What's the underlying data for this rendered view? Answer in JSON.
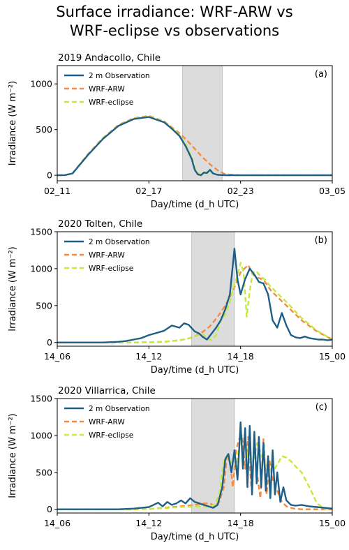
{
  "figure": {
    "title_line1": "Surface irradiance: WRF-ARW vs",
    "title_line2": "WRF-eclipse vs observations"
  },
  "colors": {
    "observation": "#1f5f87",
    "wrf_arw": "#f58a45",
    "wrf_eclipse": "#c2ea3c",
    "eclipse_shade": "#dcdcdc"
  },
  "chart_data": [
    {
      "type": "line",
      "title": "2019 Andacollo, Chile",
      "panel_label": "(a)",
      "xlabel": "Day/time (d_h UTC)",
      "ylabel": "Irradiance (W m⁻²)",
      "xlim": [
        0,
        18
      ],
      "ylim": [
        -60,
        1200
      ],
      "yticks": [
        0,
        500,
        1000
      ],
      "xticks": [
        0,
        6,
        12,
        18
      ],
      "xtick_labels": [
        "02_11",
        "02_17",
        "02_23",
        "03_05"
      ],
      "eclipse_window": [
        8.2,
        10.8
      ],
      "legend": "upper left",
      "series": [
        {
          "name": "2 m Observation",
          "key": "obs",
          "x": [
            0,
            0.5,
            1,
            2,
            3,
            4,
            5,
            6,
            7,
            7.5,
            8,
            8.4,
            8.8,
            9.0,
            9.2,
            9.4,
            9.6,
            9.8,
            10.0,
            10.2,
            10.5,
            11,
            12,
            14,
            16,
            18
          ],
          "y": [
            0,
            2,
            20,
            220,
            400,
            540,
            615,
            638,
            580,
            510,
            430,
            320,
            180,
            60,
            10,
            0,
            30,
            25,
            60,
            20,
            5,
            0,
            0,
            0,
            0,
            0
          ]
        },
        {
          "name": "WRF-ARW",
          "key": "arw",
          "x": [
            0,
            0.5,
            1,
            2,
            3,
            4,
            5,
            6,
            7,
            8,
            8.5,
            9,
            9.5,
            10,
            10.5,
            11,
            12,
            14,
            16,
            18
          ],
          "y": [
            0,
            2,
            20,
            230,
            410,
            550,
            625,
            650,
            590,
            460,
            380,
            290,
            200,
            120,
            55,
            10,
            0,
            0,
            0,
            0
          ]
        },
        {
          "name": "WRF-eclipse",
          "key": "ecl",
          "x": [
            0,
            0.5,
            1,
            2,
            3,
            4,
            5,
            6,
            7,
            7.5,
            8,
            8.4,
            8.8,
            9.0,
            9.2,
            9.4,
            9.6,
            9.8,
            10.0,
            10.3,
            10.6,
            11,
            12,
            14,
            16,
            18
          ],
          "y": [
            0,
            2,
            20,
            225,
            405,
            545,
            620,
            645,
            585,
            515,
            440,
            340,
            200,
            80,
            25,
            5,
            20,
            40,
            35,
            15,
            5,
            0,
            0,
            0,
            0,
            0
          ]
        }
      ]
    },
    {
      "type": "line",
      "title": "2020 Tolten, Chile",
      "panel_label": "(b)",
      "xlabel": "Day/time (d_h UTC)",
      "ylabel": "Irradiance (W m⁻²)",
      "xlim": [
        0,
        18
      ],
      "ylim": [
        -50,
        1500
      ],
      "yticks": [
        0,
        500,
        1000,
        1500
      ],
      "xticks": [
        0,
        6,
        12,
        18
      ],
      "xtick_labels": [
        "14_06",
        "14_12",
        "14_18",
        "15_00"
      ],
      "eclipse_window": [
        8.8,
        11.6
      ],
      "legend": "upper left",
      "series": [
        {
          "name": "2 m Observation",
          "key": "obs",
          "x": [
            0,
            1,
            2,
            3,
            3.5,
            4,
            4.5,
            5,
            5.5,
            6,
            6.5,
            7,
            7.5,
            8,
            8.3,
            8.6,
            9,
            9.3,
            9.5,
            9.8,
            10.1,
            10.4,
            10.7,
            11.0,
            11.3,
            11.6,
            11.8,
            12.0,
            12.3,
            12.6,
            12.9,
            13.2,
            13.5,
            13.8,
            14.1,
            14.4,
            14.7,
            15.0,
            15.3,
            15.6,
            15.9,
            16.2,
            16.5,
            16.8,
            17.1,
            17.4,
            17.7,
            18
          ],
          "y": [
            0,
            0,
            0,
            0,
            5,
            10,
            20,
            40,
            60,
            100,
            130,
            160,
            230,
            200,
            260,
            240,
            150,
            120,
            80,
            40,
            120,
            200,
            300,
            450,
            650,
            1270,
            850,
            650,
            860,
            1000,
            920,
            820,
            800,
            650,
            300,
            200,
            400,
            230,
            100,
            70,
            60,
            80,
            60,
            50,
            40,
            40,
            30,
            40
          ]
        },
        {
          "name": "WRF-ARW",
          "key": "arw",
          "x": [
            0,
            3,
            5,
            6,
            7,
            8,
            8.5,
            9,
            9.5,
            10,
            10.5,
            11,
            11.5,
            12,
            12.5,
            12.8,
            13.1,
            13.5,
            14,
            15,
            16,
            17,
            18
          ],
          "y": [
            0,
            0,
            0,
            5,
            10,
            30,
            50,
            80,
            140,
            220,
            350,
            500,
            700,
            950,
            1050,
            920,
            880,
            850,
            700,
            500,
            300,
            150,
            40
          ]
        },
        {
          "name": "WRF-eclipse",
          "key": "ecl",
          "x": [
            0,
            3,
            5,
            6,
            7,
            8,
            8.5,
            9,
            9.5,
            9.8,
            10.1,
            10.4,
            10.7,
            11.0,
            11.3,
            11.6,
            11.8,
            12.0,
            12.2,
            12.4,
            12.6,
            12.8,
            13.0,
            13.3,
            13.6,
            14,
            15,
            16,
            17,
            18
          ],
          "y": [
            0,
            0,
            0,
            5,
            10,
            30,
            50,
            80,
            120,
            60,
            30,
            100,
            300,
            380,
            550,
            800,
            900,
            1080,
            950,
            350,
            700,
            950,
            970,
            900,
            850,
            750,
            550,
            330,
            160,
            40
          ]
        }
      ]
    },
    {
      "type": "line",
      "title": "2020 Villarrica, Chile",
      "panel_label": "(c)",
      "xlabel": "Day/time (d_h UTC)",
      "ylabel": "Irradiance (W m⁻²)",
      "xlim": [
        0,
        18
      ],
      "ylim": [
        -50,
        1500
      ],
      "yticks": [
        0,
        500,
        1000,
        1500
      ],
      "xticks": [
        0,
        6,
        12,
        18
      ],
      "xtick_labels": [
        "14_06",
        "14_12",
        "14_18",
        "15_00"
      ],
      "eclipse_window": [
        8.8,
        11.6
      ],
      "legend": "upper left",
      "series": [
        {
          "name": "2 m Observation",
          "key": "obs",
          "x": [
            0,
            2,
            4,
            5,
            5.5,
            6,
            6.3,
            6.6,
            6.9,
            7.2,
            7.5,
            7.8,
            8.1,
            8.4,
            8.7,
            9.0,
            9.3,
            9.6,
            9.9,
            10.2,
            10.5,
            10.8,
            11.0,
            11.2,
            11.4,
            11.6,
            11.8,
            12.0,
            12.15,
            12.3,
            12.45,
            12.6,
            12.75,
            12.9,
            13.05,
            13.2,
            13.35,
            13.5,
            13.65,
            13.8,
            13.95,
            14.1,
            14.25,
            14.4,
            14.6,
            14.8,
            15.0,
            15.3,
            15.6,
            16,
            16.5,
            17,
            17.5,
            18
          ],
          "y": [
            0,
            0,
            0,
            10,
            20,
            30,
            60,
            90,
            40,
            100,
            60,
            80,
            120,
            80,
            150,
            100,
            80,
            60,
            40,
            20,
            60,
            300,
            680,
            750,
            500,
            800,
            400,
            1180,
            550,
            1100,
            300,
            1130,
            200,
            1050,
            350,
            980,
            300,
            900,
            250,
            720,
            150,
            800,
            200,
            500,
            100,
            300,
            120,
            60,
            50,
            60,
            40,
            30,
            20,
            10
          ]
        },
        {
          "name": "WRF-ARW",
          "key": "arw",
          "x": [
            0,
            3,
            5,
            6,
            7,
            8,
            9,
            9.5,
            10,
            10.3,
            10.6,
            10.9,
            11.1,
            11.3,
            11.5,
            11.7,
            11.9,
            12.1,
            12.3,
            12.5,
            12.7,
            12.9,
            13.1,
            13.3,
            13.5,
            13.7,
            13.9,
            14.1,
            14.3,
            14.5,
            14.7,
            15.0,
            15.5,
            16,
            16.5,
            17,
            17.5,
            18
          ],
          "y": [
            0,
            0,
            0,
            5,
            20,
            40,
            60,
            80,
            80,
            40,
            100,
            300,
            720,
            650,
            300,
            800,
            950,
            1000,
            550,
            980,
            300,
            900,
            450,
            150,
            950,
            200,
            650,
            400,
            300,
            200,
            100,
            40,
            10,
            0,
            0,
            0,
            0,
            0
          ]
        },
        {
          "name": "WRF-eclipse",
          "key": "ecl",
          "x": [
            0,
            3,
            5,
            6,
            7,
            8,
            9,
            9.5,
            10,
            10.3,
            10.6,
            10.9,
            11.1,
            11.3,
            11.5,
            11.7,
            11.9,
            12.1,
            12.3,
            12.5,
            12.7,
            12.9,
            13.1,
            13.3,
            13.5,
            13.8,
            14.1,
            14.4,
            14.7,
            15.0,
            15.3,
            15.6,
            16,
            16.5,
            17,
            17.5,
            18
          ],
          "y": [
            0,
            0,
            0,
            5,
            15,
            30,
            40,
            40,
            40,
            60,
            200,
            650,
            720,
            680,
            600,
            550,
            850,
            1000,
            950,
            700,
            620,
            700,
            900,
            780,
            650,
            550,
            520,
            600,
            720,
            700,
            650,
            580,
            500,
            300,
            80,
            10,
            0
          ]
        }
      ]
    }
  ]
}
